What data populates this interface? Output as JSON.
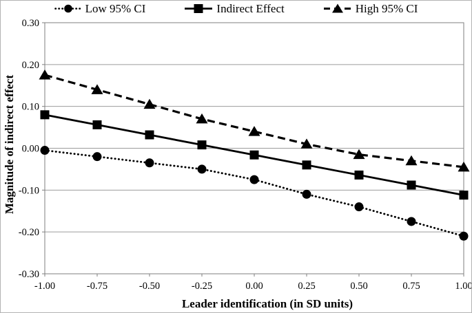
{
  "chart_data": {
    "type": "line",
    "title": "",
    "xlabel": "Leader identification (in SD units)",
    "ylabel": "Magnitude of indirect effect",
    "xlim": [
      -1.0,
      1.0
    ],
    "ylim": [
      -0.3,
      0.3
    ],
    "grid": true,
    "legend_position": "top",
    "x": [
      -1.0,
      -0.75,
      -0.5,
      -0.25,
      0.0,
      0.25,
      0.5,
      0.75,
      1.0
    ],
    "x_ticks": [
      -1.0,
      -0.75,
      -0.5,
      -0.25,
      0.0,
      0.25,
      0.5,
      0.75,
      1.0
    ],
    "x_tick_labels": [
      "-1.00",
      "-0.75",
      "-0.50",
      "-0.25",
      "0.00",
      "0.25",
      "0.50",
      "0.75",
      "1.00"
    ],
    "y_ticks": [
      0.3,
      0.2,
      0.1,
      0.0,
      -0.1,
      -0.2,
      -0.3
    ],
    "y_tick_labels": [
      "0.30",
      "0.20",
      "0.10",
      "0.00",
      "-0.10",
      "-0.20",
      "-0.30"
    ],
    "series": [
      {
        "name": "Low 95% CI",
        "marker": "circle",
        "line_style": "dotted",
        "values": [
          -0.005,
          -0.02,
          -0.035,
          -0.05,
          -0.075,
          -0.11,
          -0.14,
          -0.175,
          -0.21
        ]
      },
      {
        "name": "Indirect Effect",
        "marker": "square",
        "line_style": "solid",
        "values": [
          0.08,
          0.056,
          0.032,
          0.008,
          -0.016,
          -0.04,
          -0.064,
          -0.088,
          -0.112
        ]
      },
      {
        "name": "High 95% CI",
        "marker": "triangle",
        "line_style": "dashed",
        "values": [
          0.175,
          0.14,
          0.105,
          0.07,
          0.04,
          0.01,
          -0.015,
          -0.03,
          -0.045
        ]
      }
    ],
    "colors": {
      "series": "#000000",
      "gridline": "#9b9b9b",
      "axis_frame": "#7f7f7f",
      "background": "#ffffff",
      "figure_border": "#b3b3b3"
    }
  }
}
